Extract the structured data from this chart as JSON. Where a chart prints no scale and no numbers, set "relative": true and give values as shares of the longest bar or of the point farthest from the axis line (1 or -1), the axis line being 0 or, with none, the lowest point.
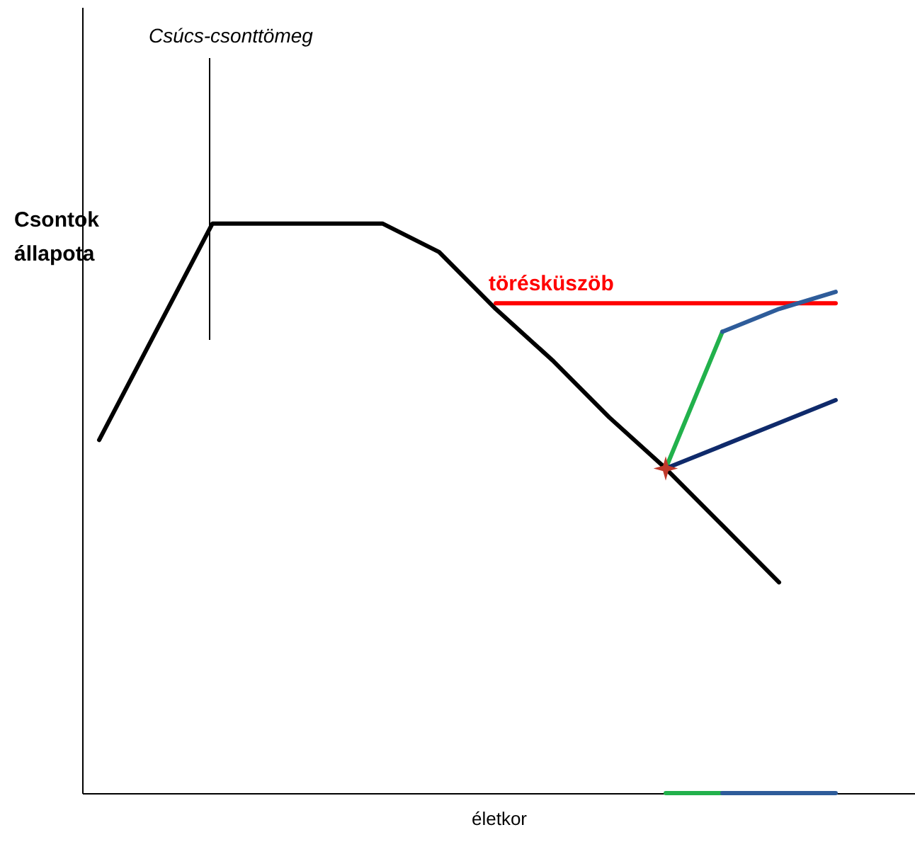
{
  "chart_data": {
    "type": "line",
    "relative": true,
    "ylabel": "Csontok állapota",
    "xlabel": "életkor",
    "categories": [
      null,
      null,
      null,
      null,
      null,
      null,
      null,
      null,
      null,
      null,
      null,
      null,
      null,
      null
    ],
    "series": [
      {
        "color": "#000000",
        "values": [
          0.62,
          0.81,
          1.0,
          1.0,
          1.0,
          1.0,
          0.95,
          0.85,
          0.76,
          0.66,
          0.57,
          0.47,
          0.37,
          null
        ]
      },
      {
        "name": "törésküszöb",
        "color": "#ff0000",
        "values": [
          null,
          null,
          null,
          null,
          null,
          null,
          null,
          0.86,
          0.86,
          0.86,
          0.86,
          0.86,
          0.86,
          0.86
        ]
      },
      {
        "color": "#22b14c",
        "values": [
          null,
          null,
          null,
          null,
          null,
          null,
          null,
          null,
          null,
          null,
          0.57,
          0.81,
          null,
          null
        ]
      },
      {
        "color": "#2e5c9a",
        "values": [
          null,
          null,
          null,
          null,
          null,
          null,
          null,
          null,
          null,
          null,
          null,
          0.81,
          0.85,
          0.88
        ]
      },
      {
        "color": "#0f2a6b",
        "values": [
          null,
          null,
          null,
          null,
          null,
          null,
          null,
          null,
          null,
          null,
          0.57,
          0.61,
          0.65,
          0.69
        ]
      },
      {
        "marker": "star",
        "color": "#c0392b",
        "values": [
          null,
          null,
          null,
          null,
          null,
          null,
          null,
          null,
          null,
          null,
          0.57,
          null,
          null,
          null
        ]
      },
      {
        "color": "#22b14c",
        "values": [
          null,
          null,
          null,
          null,
          null,
          null,
          null,
          null,
          null,
          null,
          0.0,
          0.0,
          null,
          null
        ]
      },
      {
        "color": "#2e5c9a",
        "values": [
          null,
          null,
          null,
          null,
          null,
          null,
          null,
          null,
          null,
          null,
          null,
          0.0,
          0.0,
          0.0
        ]
      }
    ],
    "annotations": [
      "Csúcs-csonttömeg"
    ],
    "tick_labels": false,
    "grid": false,
    "legend": false,
    "marker": "none",
    "line_style": "solid"
  }
}
